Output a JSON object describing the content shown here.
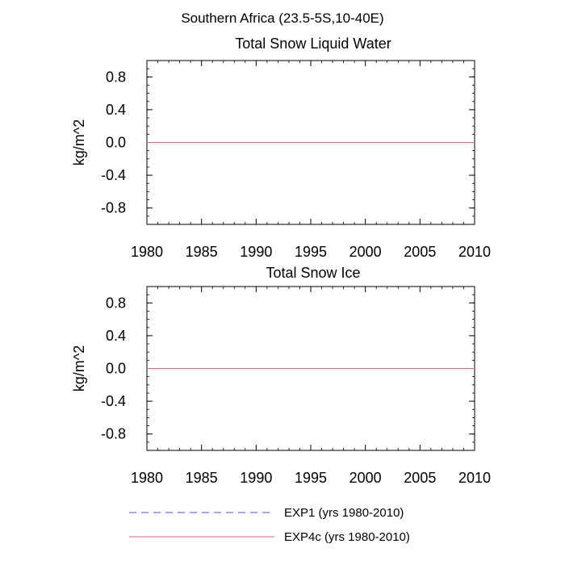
{
  "figure": {
    "title": "Southern Africa (23.5-5S,10-40E)"
  },
  "legend": {
    "items": [
      {
        "label": "EXP1 (yrs 1980-2010)",
        "color": "#4a4aff",
        "style": "dashed"
      },
      {
        "label": "EXP4c (yrs 1980-2010)",
        "color": "#ff5a6e",
        "style": "solid"
      }
    ]
  },
  "chart_data": [
    {
      "type": "line",
      "title": "Total Snow Liquid Water",
      "xlabel": "",
      "ylabel": "kg/m^2",
      "xlim": [
        1980,
        2010
      ],
      "ylim": [
        -1,
        1
      ],
      "xticks": [
        1980,
        1985,
        1990,
        1995,
        2000,
        2005,
        2010
      ],
      "yticks": [
        -0.8,
        -0.4,
        0.0,
        0.4,
        0.8
      ],
      "xtick_labels": [
        "1980",
        "1985",
        "1990",
        "1995",
        "2000",
        "2005",
        "2010"
      ],
      "ytick_labels": [
        "-0.8",
        "-0.4",
        "0.0",
        "0.4",
        "0.8"
      ],
      "x": [
        1980,
        2010
      ],
      "series": [
        {
          "name": "EXP1 (yrs 1980-2010)",
          "values": [
            0.0,
            0.0
          ],
          "color": "#4a4aff",
          "style": "dashed"
        },
        {
          "name": "EXP4c (yrs 1980-2010)",
          "values": [
            0.0,
            0.0
          ],
          "color": "#ff5a6e",
          "style": "solid"
        }
      ],
      "zero_line": true
    },
    {
      "type": "line",
      "title": "Total Snow Ice",
      "xlabel": "",
      "ylabel": "kg/m^2",
      "xlim": [
        1980,
        2010
      ],
      "ylim": [
        -1,
        1
      ],
      "xticks": [
        1980,
        1985,
        1990,
        1995,
        2000,
        2005,
        2010
      ],
      "yticks": [
        -0.8,
        -0.4,
        0.0,
        0.4,
        0.8
      ],
      "xtick_labels": [
        "1980",
        "1985",
        "1990",
        "1995",
        "2000",
        "2005",
        "2010"
      ],
      "ytick_labels": [
        "-0.8",
        "-0.4",
        "0.0",
        "0.4",
        "0.8"
      ],
      "x": [
        1980,
        2010
      ],
      "series": [
        {
          "name": "EXP1 (yrs 1980-2010)",
          "values": [
            0.0,
            0.0
          ],
          "color": "#4a4aff",
          "style": "dashed"
        },
        {
          "name": "EXP4c (yrs 1980-2010)",
          "values": [
            0.0,
            0.0
          ],
          "color": "#ff5a6e",
          "style": "solid"
        }
      ],
      "zero_line": true
    }
  ]
}
